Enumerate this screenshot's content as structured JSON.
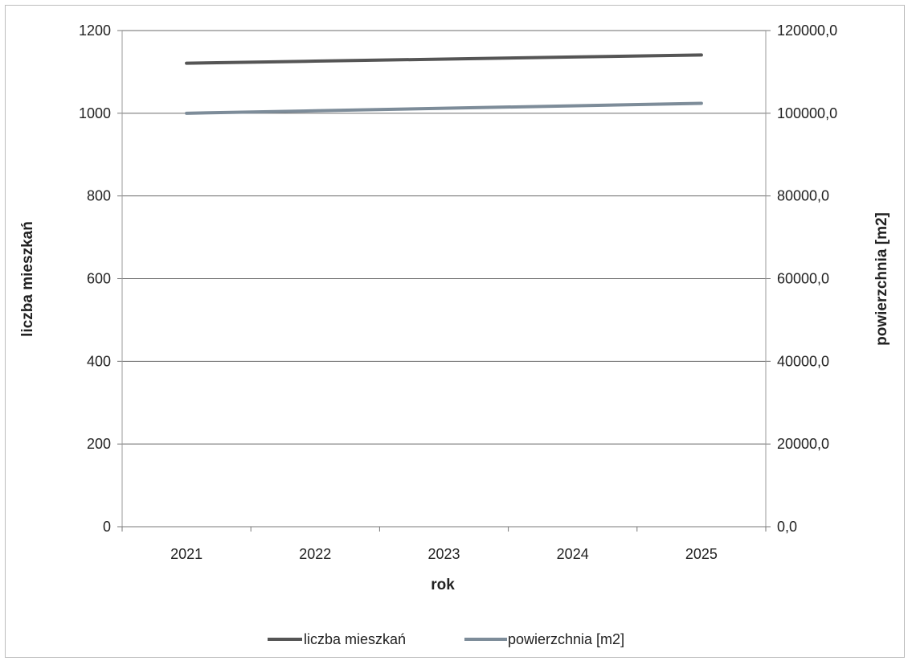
{
  "chart_data": {
    "type": "line",
    "categories": [
      "2021",
      "2022",
      "2023",
      "2024",
      "2025"
    ],
    "series": [
      {
        "name": "liczba mieszkań",
        "axis": "left",
        "values": [
          1121,
          1126,
          1131,
          1136,
          1141
        ],
        "color": "#555555"
      },
      {
        "name": "powierzchnia [m2]",
        "axis": "right",
        "values": [
          100000,
          100600,
          101200,
          101800,
          102400
        ],
        "color": "#7d8c99"
      }
    ],
    "xlabel": "rok",
    "ylabel": "liczba mieszkań",
    "y2label": "powierzchnia [m2]",
    "ylim": [
      0,
      1200
    ],
    "y2lim": [
      0,
      120000
    ],
    "yticks": [
      "0",
      "200",
      "400",
      "600",
      "800",
      "1000",
      "1200"
    ],
    "y2ticks": [
      "0,0",
      "20000,0",
      "40000,0",
      "60000,0",
      "80000,0",
      "100000,0",
      "120000,0"
    ],
    "grid": true,
    "legend_position": "bottom"
  }
}
